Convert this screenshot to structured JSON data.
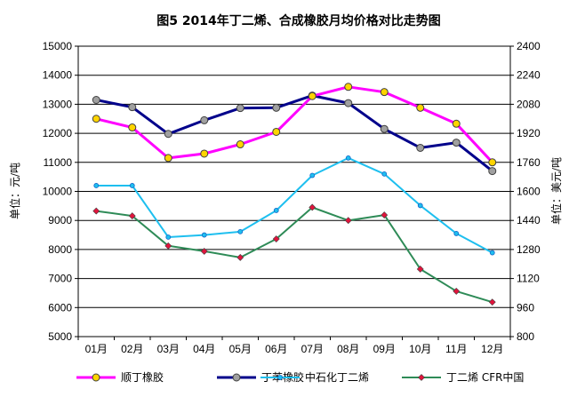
{
  "chart_data": {
    "type": "line",
    "title": "图5 2014年丁二烯、合成橡胶月均价格对比走势图",
    "categories": [
      "01月",
      "02月",
      "03月",
      "04月",
      "05月",
      "06月",
      "07月",
      "08月",
      "09月",
      "10月",
      "11月",
      "12月"
    ],
    "ylabel_left": "单位：元/吨",
    "ylabel_right": "单位：美元/吨",
    "ylim_left": [
      5000,
      15000
    ],
    "ylim_right": [
      800,
      2400
    ],
    "yticks_left": [
      "15000",
      "14000",
      "13000",
      "12000",
      "11000",
      "10000",
      "9000",
      "8000",
      "7000",
      "6000",
      "5000"
    ],
    "yticks_right": [
      "2400",
      "2240",
      "2080",
      "1920",
      "1760",
      "1600",
      "1440",
      "1280",
      "1120",
      "960",
      "800"
    ],
    "grid": true,
    "legend_position": "bottom",
    "series": [
      {
        "name": "顺丁橡胶",
        "axis": "left",
        "color": "#ff00ff",
        "marker_fill": "#ffd400",
        "marker": "circle",
        "width": 3,
        "values": [
          12500,
          12200,
          11150,
          11300,
          11620,
          12050,
          13280,
          13600,
          13420,
          12880,
          12330,
          11000
        ]
      },
      {
        "name": "丁苯橡胶",
        "axis": "left",
        "color": "#00008b",
        "marker_fill": "#a0a0a0",
        "marker": "circle",
        "width": 3,
        "values": [
          13150,
          12900,
          11980,
          12450,
          12870,
          12880,
          13300,
          13040,
          12150,
          11500,
          11680,
          10700
        ]
      },
      {
        "name": "中石化丁二烯",
        "axis": "right",
        "color": "#1ebfef",
        "marker_fill": "#1ebfef",
        "marker": "dot",
        "width": 2,
        "values": [
          1632,
          1632,
          1348,
          1360,
          1378,
          1495,
          1688,
          1784,
          1696,
          1522,
          1368,
          1262
        ]
      },
      {
        "name": "丁二烯 CFR中国",
        "axis": "right",
        "color": "#2e8b57",
        "marker_fill": "#e0143c",
        "marker": "diamond",
        "width": 2,
        "values": [
          1492,
          1465,
          1300,
          1270,
          1236,
          1338,
          1512,
          1440,
          1470,
          1172,
          1050,
          990
        ]
      }
    ]
  }
}
